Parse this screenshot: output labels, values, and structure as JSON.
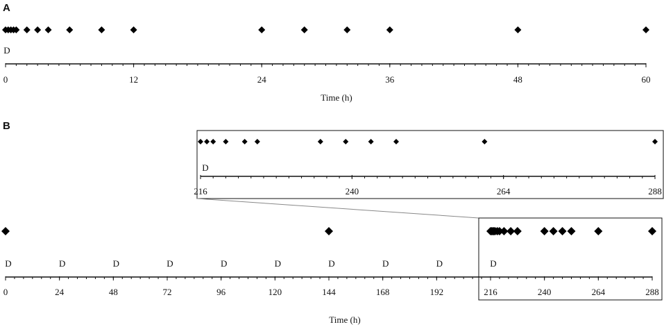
{
  "panel_a": {
    "label": "A",
    "axis_title": "Time (h)",
    "dose_marks": [
      "D"
    ],
    "dose_times": [
      0
    ],
    "tick_labels": [
      "0",
      "12",
      "24",
      "36",
      "48",
      "60"
    ],
    "tick_values": [
      0,
      12,
      24,
      36,
      48,
      60
    ],
    "axis_range": [
      0,
      60
    ],
    "minor_step": 1,
    "sample_times": [
      0,
      0.25,
      0.5,
      0.75,
      1,
      2,
      3,
      4,
      6,
      9,
      12,
      24,
      28,
      32,
      36,
      48,
      60
    ]
  },
  "panel_b": {
    "label": "B",
    "axis_title": "Time (h)",
    "dose_marks": [
      "D",
      "D",
      "D",
      "D",
      "D",
      "D",
      "D",
      "D",
      "D",
      "D"
    ],
    "dose_times": [
      0,
      24,
      48,
      72,
      96,
      120,
      144,
      168,
      192,
      216
    ],
    "tick_labels": [
      "0",
      "24",
      "48",
      "72",
      "96",
      "120",
      "144",
      "168",
      "192",
      "216",
      "240",
      "264",
      "288"
    ],
    "tick_values": [
      0,
      24,
      48,
      72,
      96,
      120,
      144,
      168,
      192,
      216,
      240,
      264,
      288
    ],
    "axis_range": [
      0,
      288
    ],
    "minor_step": 4,
    "sample_times": [
      0,
      144,
      216,
      216.5,
      217,
      217.5,
      218,
      219,
      220,
      222,
      225,
      228,
      240,
      244,
      248,
      252,
      264,
      288
    ]
  },
  "inset": {
    "dose_marks": [
      "D"
    ],
    "dose_times": [
      216
    ],
    "tick_labels": [
      "216",
      "240",
      "264",
      "288"
    ],
    "tick_values": [
      216,
      240,
      264,
      288
    ],
    "axis_range": [
      216,
      288
    ],
    "minor_step": 2,
    "sample_times": [
      216,
      217,
      218,
      220,
      223,
      225,
      235,
      239,
      243,
      247,
      261,
      288
    ]
  }
}
